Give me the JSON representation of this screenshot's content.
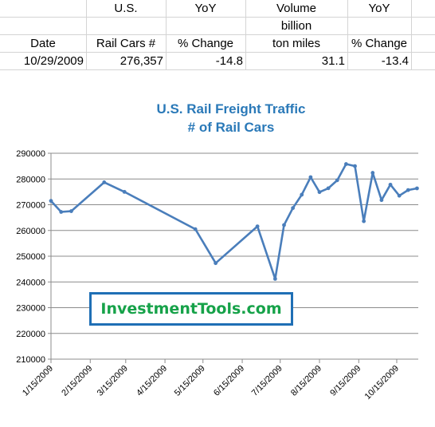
{
  "table": {
    "header_row1": {
      "col_b": "U.S.",
      "col_c": "YoY",
      "col_d": "Volume",
      "col_e": "YoY"
    },
    "header_row2": {
      "col_d": "billion"
    },
    "header_row3": {
      "col_a": "Date",
      "col_b": "Rail Cars #",
      "col_c": "% Change",
      "col_d": "ton miles",
      "col_e": "% Change"
    },
    "data_row": {
      "date": "10/29/2009",
      "rail_cars": "276,357",
      "yoy_cars": "-14.8",
      "volume": "31.1",
      "yoy_volume": "-13.4"
    }
  },
  "watermark": "InvestmentTools.com",
  "colors": {
    "line": "#4a7ebb",
    "title": "#2a79b8",
    "watermark_border": "#1f6fb5",
    "watermark_text": "#16a249"
  },
  "chart_data": {
    "type": "line",
    "title": "U.S. Rail Freight Traffic",
    "subtitle": "# of Rail Cars",
    "xlabel": "",
    "ylabel": "",
    "ylim": [
      210000,
      290000
    ],
    "yticks": [
      210000,
      220000,
      230000,
      240000,
      250000,
      260000,
      270000,
      280000,
      290000
    ],
    "xtick_labels": [
      "1/15/2009",
      "2/15/2009",
      "3/15/2009",
      "4/15/2009",
      "5/15/2009",
      "6/15/2009",
      "7/15/2009",
      "8/15/2009",
      "9/15/2009",
      "10/15/2009"
    ],
    "xlim": [
      "2009-01-15",
      "2009-11-01"
    ],
    "grid": "horizontal",
    "series": [
      {
        "points": [
          {
            "x": "2009-01-15",
            "y": 271500
          },
          {
            "x": "2009-01-23",
            "y": 267200
          },
          {
            "x": "2009-01-31",
            "y": 267500
          },
          {
            "x": "2009-02-26",
            "y": 278700
          },
          {
            "x": "2009-03-14",
            "y": 275000
          },
          {
            "x": "2009-05-09",
            "y": 260500
          },
          {
            "x": "2009-05-25",
            "y": 247300
          },
          {
            "x": "2009-06-27",
            "y": 261600
          },
          {
            "x": "2009-07-11",
            "y": 241200
          },
          {
            "x": "2009-07-18",
            "y": 262100
          },
          {
            "x": "2009-07-25",
            "y": 268700
          },
          {
            "x": "2009-08-01",
            "y": 273900
          },
          {
            "x": "2009-08-08",
            "y": 280700
          },
          {
            "x": "2009-08-15",
            "y": 274900
          },
          {
            "x": "2009-08-22",
            "y": 276400
          },
          {
            "x": "2009-08-29",
            "y": 279500
          },
          {
            "x": "2009-09-05",
            "y": 285800
          },
          {
            "x": "2009-09-12",
            "y": 285000
          },
          {
            "x": "2009-09-19",
            "y": 263600
          },
          {
            "x": "2009-09-26",
            "y": 282400
          },
          {
            "x": "2009-10-03",
            "y": 271800
          },
          {
            "x": "2009-10-10",
            "y": 277800
          },
          {
            "x": "2009-10-17",
            "y": 273500
          },
          {
            "x": "2009-10-24",
            "y": 275700
          },
          {
            "x": "2009-10-31",
            "y": 276357
          }
        ]
      }
    ]
  }
}
